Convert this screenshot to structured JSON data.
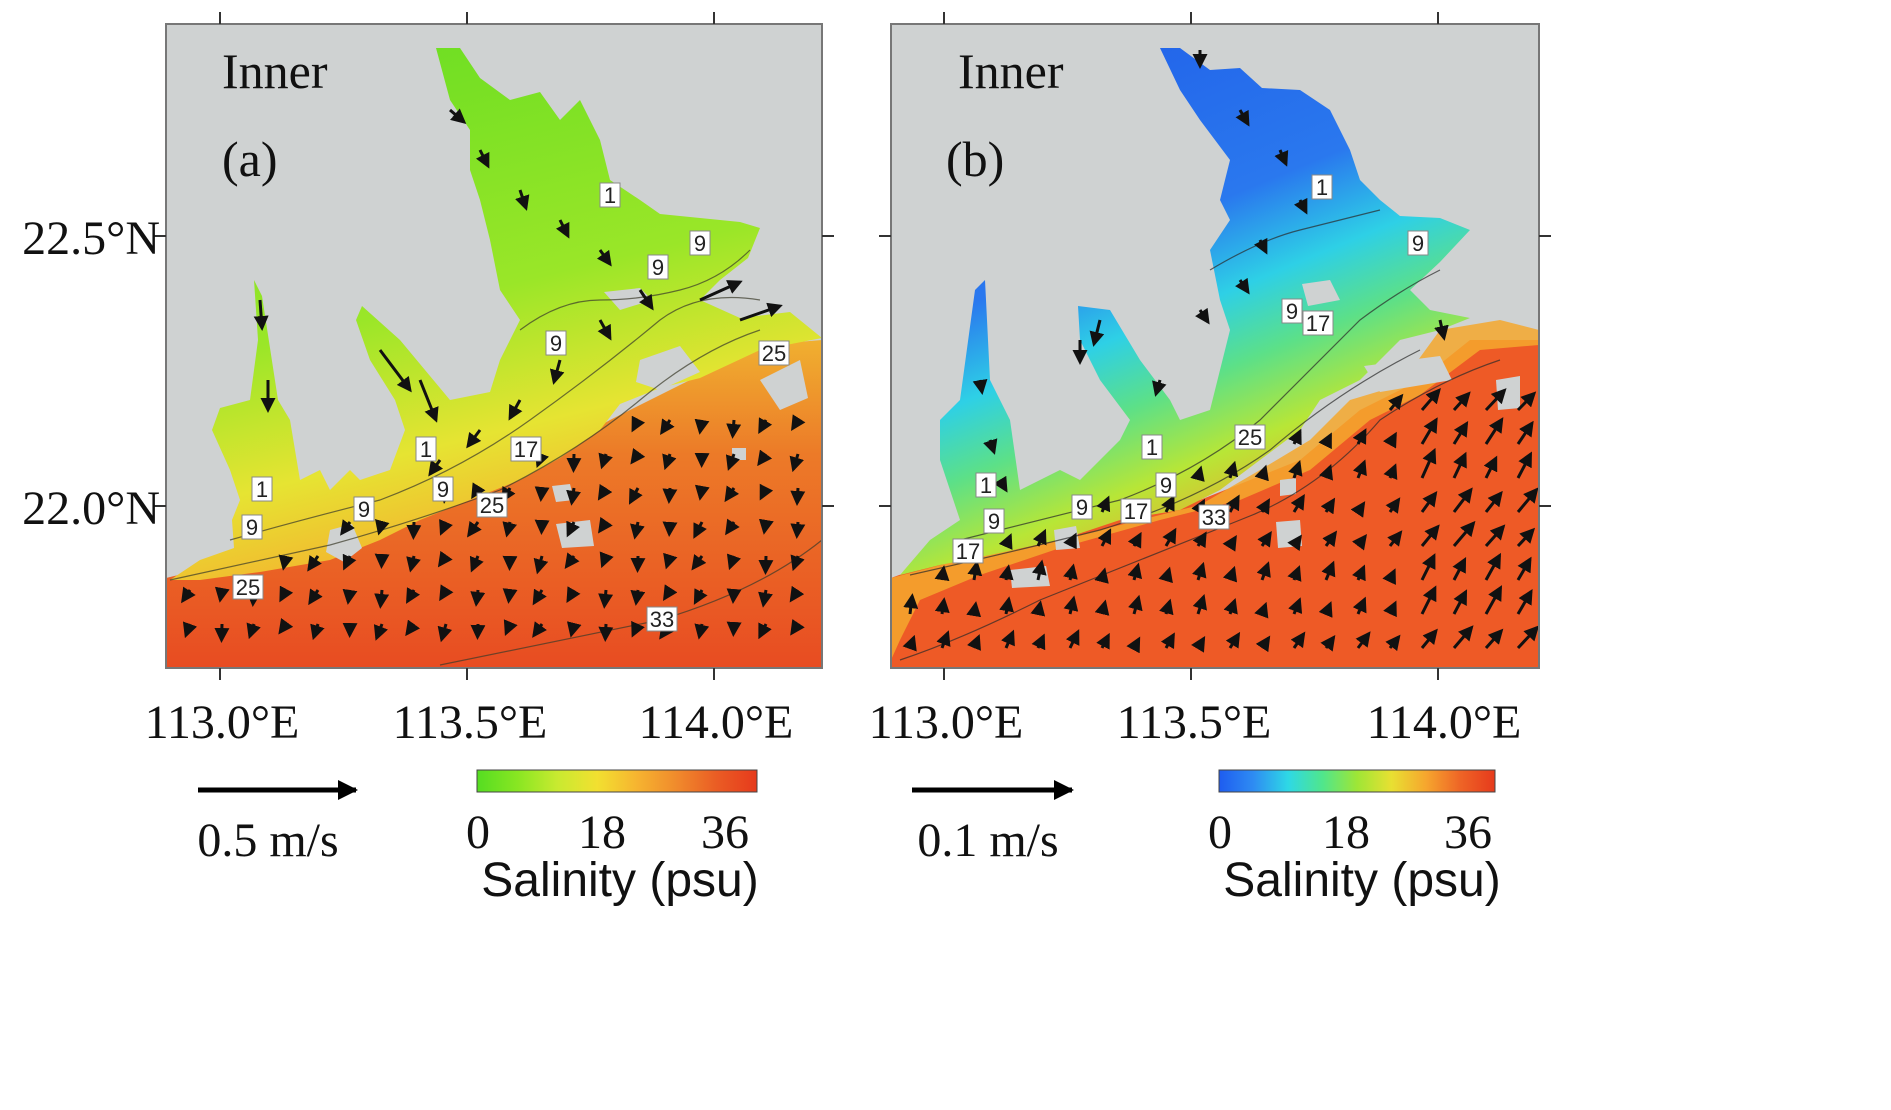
{
  "panels": [
    {
      "id": "a",
      "region_label": "Inner",
      "panel_label": "(a)",
      "lon_ticks": [
        "113.0°E",
        "113.5°E",
        "114.0°E"
      ],
      "lat_ticks": [
        "22.5°N",
        "22.0°N"
      ],
      "scale_arrow_label": "0.5 m/s",
      "colorbar": {
        "ticks": [
          "0",
          "18",
          "36"
        ],
        "title": "Salinity (psu)",
        "colors": [
          "#55dd22",
          "#88e622",
          "#c8ea30",
          "#f2e030",
          "#f6b430",
          "#f08a2c",
          "#ea5c24",
          "#e63a1c"
        ]
      },
      "contour_labels": [
        "1",
        "9",
        "9",
        "9",
        "1",
        "1",
        "9",
        "9",
        "9",
        "17",
        "25",
        "25",
        "25",
        "33"
      ],
      "colors": {
        "land": "#cfd2d2",
        "fresh": "#66dd22",
        "mid": "#f2dc2e",
        "salty": "#ea4c22"
      }
    },
    {
      "id": "b",
      "region_label": "Inner",
      "panel_label": "(b)",
      "lon_ticks": [
        "113.0°E",
        "113.5°E",
        "114.0°E"
      ],
      "lat_ticks": [],
      "scale_arrow_label": "0.1 m/s",
      "colorbar": {
        "ticks": [
          "0",
          "18",
          "36"
        ],
        "title": "Salinity (psu)",
        "colors": [
          "#1e5cf0",
          "#2e8cf2",
          "#2ed8e6",
          "#50e68c",
          "#9ee636",
          "#e8e032",
          "#f6a62e",
          "#ee6426",
          "#e63a1c"
        ]
      },
      "contour_labels": [
        "1",
        "9",
        "9",
        "17",
        "1",
        "1",
        "9",
        "9",
        "9",
        "17",
        "17",
        "25",
        "33"
      ],
      "colors": {
        "land": "#cfd2d2",
        "fresh": "#1f5ce8",
        "mid": "#9ee636",
        "salty": "#ee5a26"
      }
    }
  ]
}
